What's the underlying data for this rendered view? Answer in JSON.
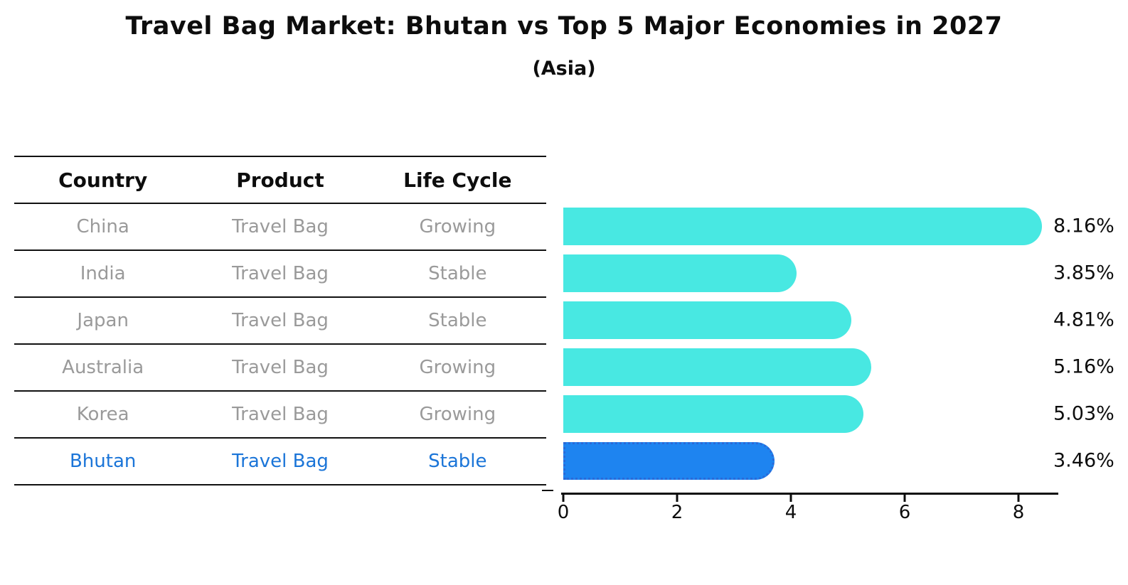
{
  "title": "Travel Bag Market: Bhutan vs Top 5 Major Economies in 2027",
  "subtitle": "(Asia)",
  "table": {
    "headers": [
      "Country",
      "Product",
      "Life Cycle"
    ],
    "rows": [
      {
        "country": "China",
        "product": "Travel Bag",
        "life_cycle": "Growing"
      },
      {
        "country": "India",
        "product": "Travel Bag",
        "life_cycle": "Stable"
      },
      {
        "country": "Japan",
        "product": "Travel Bag",
        "life_cycle": "Stable"
      },
      {
        "country": "Australia",
        "product": "Travel Bag",
        "life_cycle": "Growing"
      },
      {
        "country": "Korea",
        "product": "Travel Bag",
        "life_cycle": "Growing"
      },
      {
        "country": "Bhutan",
        "product": "Travel Bag",
        "life_cycle": "Stable"
      }
    ],
    "highlighted_country": "Bhutan"
  },
  "chart_data": {
    "type": "bar",
    "orientation": "horizontal",
    "title": "Travel Bag Market: Bhutan vs Top 5 Major Economies in 2027",
    "subtitle": "(Asia)",
    "categories": [
      "China",
      "India",
      "Japan",
      "Australia",
      "Korea",
      "Bhutan"
    ],
    "values": [
      8.16,
      3.85,
      4.81,
      5.16,
      5.03,
      3.46
    ],
    "value_labels": [
      "8.16%",
      "3.85%",
      "4.81%",
      "5.16%",
      "5.03%",
      "3.46%"
    ],
    "unit": "%",
    "xlabel": "",
    "ylabel": "",
    "xlim": [
      0,
      8.7
    ],
    "xticks": [
      "0",
      "2",
      "4",
      "6",
      "8"
    ],
    "xtick_values": [
      0,
      2,
      4,
      6,
      8
    ],
    "grid": false,
    "legend": false,
    "highlight_index": 5,
    "bar_color": "#48e8e2",
    "highlight_color": "#1e84f0",
    "highlight_border_color": "#2a6ad8",
    "highlight_border_style": "dotted"
  },
  "colors": {
    "title_text": "#0d0d0d",
    "table_text_muted": "#9a9a9a",
    "highlight_text": "#1b75d8",
    "axis": "#0d0d0d",
    "background": "#ffffff"
  }
}
